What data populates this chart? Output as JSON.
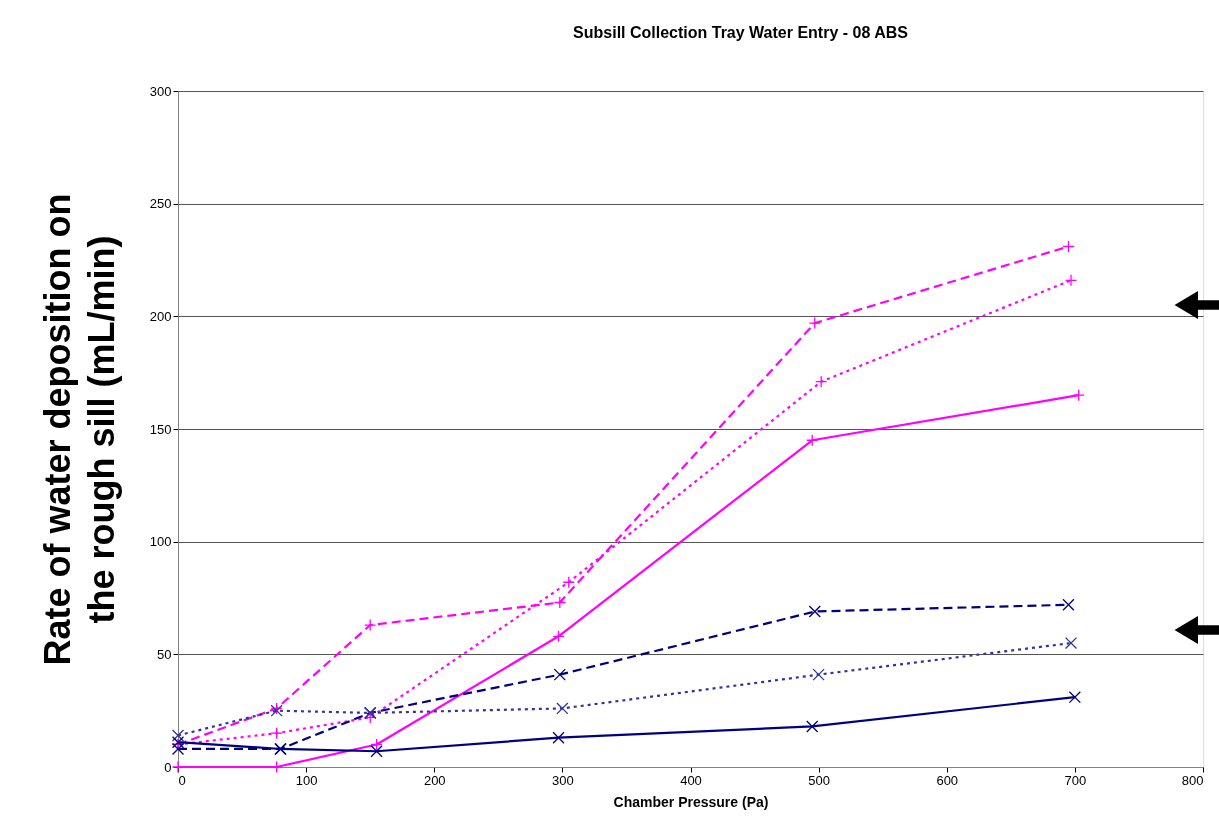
{
  "chart_data": {
    "type": "line",
    "title": "Subsill Collection Tray Water Entry - 08 ABS",
    "xlabel": "Chamber Pressure (Pa)",
    "ylabel": "Rate of water deposition on the rough sill (mL/min)",
    "xlim": [
      0,
      800
    ],
    "xticks": [
      0,
      100,
      200,
      300,
      400,
      500,
      600,
      700,
      800
    ],
    "ylim": [
      0,
      300
    ],
    "yticks": [
      0,
      50,
      100,
      150,
      200,
      250,
      300
    ],
    "grid": "y",
    "series": [
      {
        "color": "#ff00ff",
        "line_style": "dashed",
        "marker": "cross",
        "x": [
          0,
          77,
          150,
          298,
          497,
          695
        ],
        "values": [
          10,
          26,
          63,
          73,
          197,
          231
        ]
      },
      {
        "color": "#ff00ff",
        "line_style": "dotted",
        "marker": "cross",
        "x": [
          0,
          77,
          150,
          305,
          502,
          697
        ],
        "values": [
          10,
          15,
          22,
          82,
          171,
          216
        ]
      },
      {
        "color": "#ff00ff",
        "line_style": "solid",
        "marker": "cross",
        "x": [
          0,
          77,
          155,
          297,
          495,
          703
        ],
        "values": [
          0,
          0,
          10,
          58,
          145,
          165
        ]
      },
      {
        "color": "#000080",
        "line_style": "dashed",
        "marker": "x",
        "x": [
          0,
          80,
          150,
          298,
          497,
          695
        ],
        "values": [
          8,
          8,
          24,
          41,
          69,
          72
        ]
      },
      {
        "color": "#333399",
        "line_style": "dotted",
        "marker": "x",
        "x": [
          0,
          77,
          150,
          300,
          500,
          697
        ],
        "values": [
          14,
          25,
          24,
          26,
          41,
          55
        ]
      },
      {
        "color": "#000080",
        "line_style": "solid",
        "marker": "x",
        "x": [
          0,
          80,
          155,
          297,
          495,
          700
        ],
        "values": [
          11,
          8,
          7,
          13,
          18,
          31
        ]
      }
    ]
  }
}
